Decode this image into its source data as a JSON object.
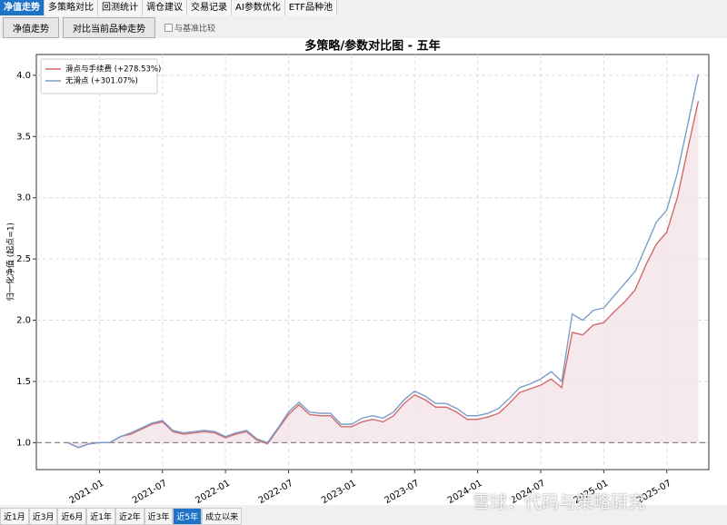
{
  "tabs": [
    "净值走势",
    "多策略对比",
    "回测统计",
    "调仓建议",
    "交易记录",
    "AI参数优化",
    "ETF品种池"
  ],
  "active_tab": 0,
  "toolbar": {
    "buttons": [
      "净值走势",
      "对比当前品种走势"
    ],
    "checkbox": "与基准比较"
  },
  "chart_data": {
    "type": "line",
    "title": "多策略/参数对比图 - 五年",
    "y_label": "归一化净值 (起点=1)",
    "x": [
      "2020-10",
      "2020-11",
      "2020-12",
      "2021-01",
      "2021-02",
      "2021-03",
      "2021-04",
      "2021-05",
      "2021-06",
      "2021-07",
      "2021-08",
      "2021-09",
      "2021-10",
      "2021-11",
      "2021-12",
      "2022-01",
      "2022-02",
      "2022-03",
      "2022-04",
      "2022-05",
      "2022-06",
      "2022-07",
      "2022-08",
      "2022-09",
      "2022-10",
      "2022-11",
      "2022-12",
      "2023-01",
      "2023-02",
      "2023-03",
      "2023-04",
      "2023-05",
      "2023-06",
      "2023-07",
      "2023-08",
      "2023-09",
      "2023-10",
      "2023-11",
      "2023-12",
      "2024-01",
      "2024-02",
      "2024-03",
      "2024-04",
      "2024-05",
      "2024-06",
      "2024-07",
      "2024-08",
      "2024-09",
      "2024-10",
      "2024-11",
      "2024-12",
      "2025-01",
      "2025-02",
      "2025-03",
      "2025-04",
      "2025-05",
      "2025-06",
      "2025-07",
      "2025-08",
      "2025-09",
      "2025-10"
    ],
    "series": [
      {
        "name": "滑点与手续费 (+278.53%)",
        "color": "#d46a6a",
        "values": [
          1.0,
          0.96,
          0.99,
          1.0,
          1.0,
          1.05,
          1.07,
          1.11,
          1.15,
          1.17,
          1.09,
          1.07,
          1.08,
          1.09,
          1.08,
          1.04,
          1.07,
          1.09,
          1.02,
          0.99,
          1.11,
          1.23,
          1.31,
          1.23,
          1.22,
          1.22,
          1.13,
          1.13,
          1.17,
          1.19,
          1.17,
          1.22,
          1.32,
          1.39,
          1.35,
          1.29,
          1.29,
          1.25,
          1.19,
          1.19,
          1.21,
          1.24,
          1.32,
          1.41,
          1.44,
          1.47,
          1.52,
          1.45,
          1.9,
          1.88,
          1.96,
          1.98,
          2.07,
          2.15,
          2.25,
          2.45,
          2.62,
          2.72,
          3.0,
          3.4,
          3.79
        ]
      },
      {
        "name": "无滑点 (+301.07%)",
        "color": "#7b9dc8",
        "values": [
          1.0,
          0.96,
          0.99,
          1.0,
          1.0,
          1.05,
          1.08,
          1.12,
          1.16,
          1.18,
          1.1,
          1.08,
          1.09,
          1.1,
          1.09,
          1.05,
          1.08,
          1.1,
          1.03,
          1.0,
          1.12,
          1.25,
          1.33,
          1.25,
          1.24,
          1.24,
          1.15,
          1.15,
          1.2,
          1.22,
          1.2,
          1.25,
          1.35,
          1.42,
          1.38,
          1.32,
          1.32,
          1.28,
          1.22,
          1.22,
          1.24,
          1.28,
          1.36,
          1.45,
          1.48,
          1.52,
          1.58,
          1.5,
          2.05,
          2.0,
          2.08,
          2.1,
          2.2,
          2.3,
          2.4,
          2.6,
          2.8,
          2.9,
          3.2,
          3.6,
          4.01
        ]
      }
    ],
    "xlim": [
      "2020-07",
      "2025-11"
    ],
    "xticks": [
      "2021-01",
      "2021-07",
      "2022-01",
      "2022-07",
      "2023-01",
      "2023-07",
      "2024-01",
      "2024-07",
      "2025-01",
      "2025-07"
    ],
    "ylim": [
      0.78,
      4.17
    ],
    "yticks": [
      {
        "value": 1,
        "label": "1.0"
      },
      {
        "value": 1.5,
        "label": "1.5"
      },
      {
        "value": 2,
        "label": "2.0"
      },
      {
        "value": 2.5,
        "label": "2.5"
      },
      {
        "value": 3,
        "label": "3.0"
      },
      {
        "value": 3.5,
        "label": "3.5"
      },
      {
        "value": 4,
        "label": "4.0"
      }
    ],
    "reference_line": 1,
    "fill_color": "#f2e4e8",
    "grid": true,
    "legend": "upper-left"
  },
  "periods": [
    "近1月",
    "近3月",
    "近6月",
    "近1年",
    "近2年",
    "近3年",
    "近5年",
    "成立以来"
  ],
  "active_period": 6,
  "watermark": "雪球：代码与策略研究"
}
